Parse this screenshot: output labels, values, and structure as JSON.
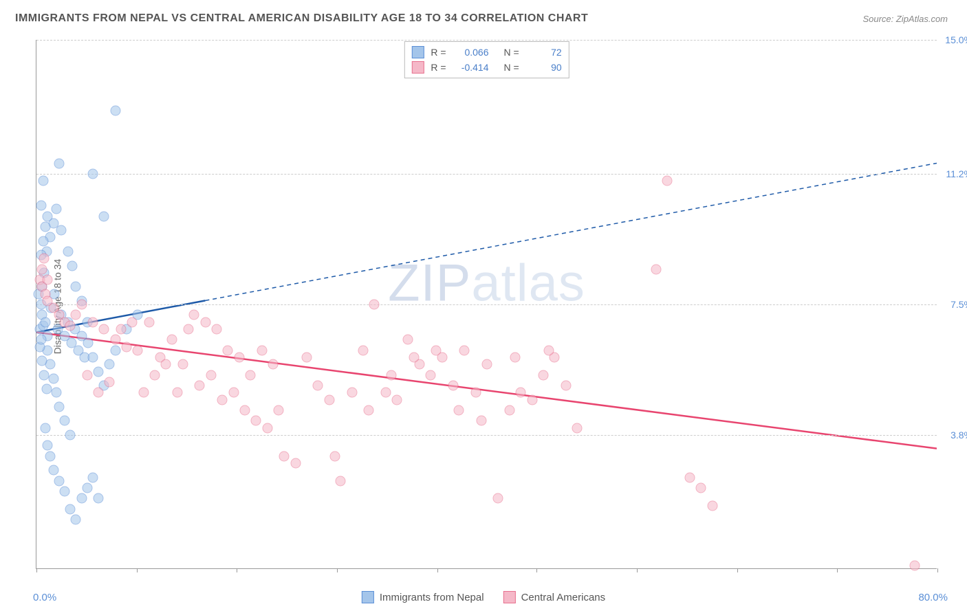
{
  "title": "IMMIGRANTS FROM NEPAL VS CENTRAL AMERICAN DISABILITY AGE 18 TO 34 CORRELATION CHART",
  "source": "Source: ZipAtlas.com",
  "y_axis_label": "Disability Age 18 to 34",
  "watermark": "ZIPatlas",
  "chart": {
    "type": "scatter",
    "background_color": "#ffffff",
    "grid_color": "#cccccc",
    "axis_color": "#999999",
    "xlim": [
      0,
      80
    ],
    "ylim": [
      0,
      15
    ],
    "x_ticks": [
      0,
      8.9,
      17.8,
      26.7,
      35.6,
      44.4,
      53.3,
      62.2,
      71.1,
      80
    ],
    "y_gridlines": [
      3.8,
      7.5,
      11.2,
      15.0
    ],
    "y_tick_labels": [
      "3.8%",
      "7.5%",
      "11.2%",
      "15.0%"
    ],
    "x_min_label": "0.0%",
    "x_max_label": "80.0%",
    "marker_size": 15,
    "marker_opacity": 0.55,
    "series": [
      {
        "name": "Immigrants from Nepal",
        "color_fill": "#a4c5ea",
        "color_stroke": "#5b8fd6",
        "R": "0.066",
        "N": "72",
        "trend": {
          "x1": 0,
          "y1": 6.7,
          "x2_solid": 15,
          "y2_solid": 7.6,
          "x2_dash": 80,
          "y2_dash": 11.5,
          "stroke": "#1e5aa8",
          "width": 2.5
        },
        "points": [
          [
            0.3,
            6.8
          ],
          [
            0.5,
            7.2
          ],
          [
            0.4,
            7.5
          ],
          [
            0.6,
            6.9
          ],
          [
            0.8,
            7.0
          ],
          [
            1.0,
            6.6
          ],
          [
            0.5,
            8.0
          ],
          [
            0.7,
            8.4
          ],
          [
            0.9,
            9.0
          ],
          [
            1.2,
            9.4
          ],
          [
            1.5,
            9.8
          ],
          [
            1.8,
            10.2
          ],
          [
            0.4,
            10.3
          ],
          [
            0.6,
            11.0
          ],
          [
            2.2,
            9.6
          ],
          [
            2.8,
            9.0
          ],
          [
            3.2,
            8.6
          ],
          [
            3.5,
            8.0
          ],
          [
            4.0,
            7.6
          ],
          [
            4.5,
            7.0
          ],
          [
            5.0,
            11.2
          ],
          [
            6.0,
            10.0
          ],
          [
            7.0,
            13.0
          ],
          [
            2.0,
            11.5
          ],
          [
            1.0,
            6.2
          ],
          [
            1.2,
            5.8
          ],
          [
            1.5,
            5.4
          ],
          [
            1.8,
            5.0
          ],
          [
            2.0,
            4.6
          ],
          [
            2.5,
            4.2
          ],
          [
            3.0,
            3.8
          ],
          [
            0.8,
            4.0
          ],
          [
            1.0,
            3.5
          ],
          [
            1.2,
            3.2
          ],
          [
            1.5,
            2.8
          ],
          [
            2.0,
            2.5
          ],
          [
            2.5,
            2.2
          ],
          [
            3.0,
            1.7
          ],
          [
            3.5,
            1.4
          ],
          [
            4.0,
            2.0
          ],
          [
            4.5,
            2.3
          ],
          [
            5.0,
            2.6
          ],
          [
            5.5,
            2.0
          ],
          [
            0.3,
            6.3
          ],
          [
            0.5,
            5.9
          ],
          [
            0.7,
            5.5
          ],
          [
            0.9,
            5.1
          ],
          [
            0.4,
            8.9
          ],
          [
            0.6,
            9.3
          ],
          [
            0.8,
            9.7
          ],
          [
            1.0,
            10.0
          ],
          [
            1.3,
            7.4
          ],
          [
            1.6,
            7.8
          ],
          [
            1.9,
            6.8
          ],
          [
            2.2,
            7.2
          ],
          [
            2.5,
            6.6
          ],
          [
            2.8,
            7.0
          ],
          [
            3.1,
            6.4
          ],
          [
            3.4,
            6.8
          ],
          [
            3.7,
            6.2
          ],
          [
            4.0,
            6.6
          ],
          [
            4.3,
            6.0
          ],
          [
            4.6,
            6.4
          ],
          [
            5.0,
            6.0
          ],
          [
            5.5,
            5.6
          ],
          [
            6.0,
            5.2
          ],
          [
            6.5,
            5.8
          ],
          [
            7.0,
            6.2
          ],
          [
            8.0,
            6.8
          ],
          [
            9.0,
            7.2
          ],
          [
            0.2,
            7.8
          ],
          [
            0.4,
            6.5
          ]
        ]
      },
      {
        "name": "Central Americans",
        "color_fill": "#f5b8c8",
        "color_stroke": "#e8718f",
        "R": "-0.414",
        "N": "90",
        "trend": {
          "x1": 0,
          "y1": 6.7,
          "x2_solid": 80,
          "y2_solid": 3.4,
          "stroke": "#e8456f",
          "width": 2.5
        },
        "points": [
          [
            0.3,
            8.2
          ],
          [
            0.5,
            8.0
          ],
          [
            0.8,
            7.8
          ],
          [
            1.0,
            7.6
          ],
          [
            1.5,
            7.4
          ],
          [
            2.0,
            7.2
          ],
          [
            2.5,
            7.0
          ],
          [
            3.0,
            6.9
          ],
          [
            3.5,
            7.2
          ],
          [
            4.0,
            7.5
          ],
          [
            5.0,
            7.0
          ],
          [
            6.0,
            6.8
          ],
          [
            7.0,
            6.5
          ],
          [
            8.0,
            6.3
          ],
          [
            9.0,
            6.2
          ],
          [
            10.0,
            7.0
          ],
          [
            11.0,
            6.0
          ],
          [
            12.0,
            6.5
          ],
          [
            13.0,
            5.8
          ],
          [
            14.0,
            7.2
          ],
          [
            15.0,
            7.0
          ],
          [
            16.0,
            6.8
          ],
          [
            17.0,
            6.2
          ],
          [
            18.0,
            6.0
          ],
          [
            19.0,
            5.5
          ],
          [
            20.0,
            6.2
          ],
          [
            21.0,
            5.8
          ],
          [
            22.0,
            3.2
          ],
          [
            23.0,
            3.0
          ],
          [
            24.0,
            6.0
          ],
          [
            25.0,
            5.2
          ],
          [
            26.0,
            4.8
          ],
          [
            26.5,
            3.2
          ],
          [
            27.0,
            2.5
          ],
          [
            28.0,
            5.0
          ],
          [
            29.0,
            6.2
          ],
          [
            30.0,
            7.5
          ],
          [
            31.0,
            5.0
          ],
          [
            32.0,
            4.8
          ],
          [
            33.0,
            6.5
          ],
          [
            34.0,
            5.8
          ],
          [
            35.0,
            5.5
          ],
          [
            36.0,
            6.0
          ],
          [
            37.0,
            5.2
          ],
          [
            38.0,
            6.2
          ],
          [
            39.0,
            5.0
          ],
          [
            40.0,
            5.8
          ],
          [
            41.0,
            2.0
          ],
          [
            42.0,
            4.5
          ],
          [
            43.0,
            5.0
          ],
          [
            44.0,
            4.8
          ],
          [
            45.0,
            5.5
          ],
          [
            46.0,
            6.0
          ],
          [
            47.0,
            5.2
          ],
          [
            48.0,
            4.0
          ],
          [
            55.0,
            8.5
          ],
          [
            56.0,
            11.0
          ],
          [
            58.0,
            2.6
          ],
          [
            59.0,
            2.3
          ],
          [
            60.0,
            1.8
          ],
          [
            78.0,
            0.1
          ],
          [
            4.5,
            5.5
          ],
          [
            5.5,
            5.0
          ],
          [
            6.5,
            5.3
          ],
          [
            7.5,
            6.8
          ],
          [
            8.5,
            7.0
          ],
          [
            9.5,
            5.0
          ],
          [
            10.5,
            5.5
          ],
          [
            11.5,
            5.8
          ],
          [
            12.5,
            5.0
          ],
          [
            13.5,
            6.8
          ],
          [
            14.5,
            5.2
          ],
          [
            15.5,
            5.5
          ],
          [
            16.5,
            4.8
          ],
          [
            17.5,
            5.0
          ],
          [
            18.5,
            4.5
          ],
          [
            19.5,
            4.2
          ],
          [
            20.5,
            4.0
          ],
          [
            21.5,
            4.5
          ],
          [
            0.5,
            8.5
          ],
          [
            0.7,
            8.8
          ],
          [
            1.0,
            8.2
          ],
          [
            33.5,
            6.0
          ],
          [
            35.5,
            6.2
          ],
          [
            37.5,
            4.5
          ],
          [
            39.5,
            4.2
          ],
          [
            42.5,
            6.0
          ],
          [
            45.5,
            6.2
          ],
          [
            31.5,
            5.5
          ],
          [
            29.5,
            4.5
          ]
        ]
      }
    ]
  },
  "legend_bottom": [
    {
      "label": "Immigrants from Nepal",
      "fill": "#a4c5ea",
      "stroke": "#5b8fd6"
    },
    {
      "label": "Central Americans",
      "fill": "#f5b8c8",
      "stroke": "#e8718f"
    }
  ]
}
